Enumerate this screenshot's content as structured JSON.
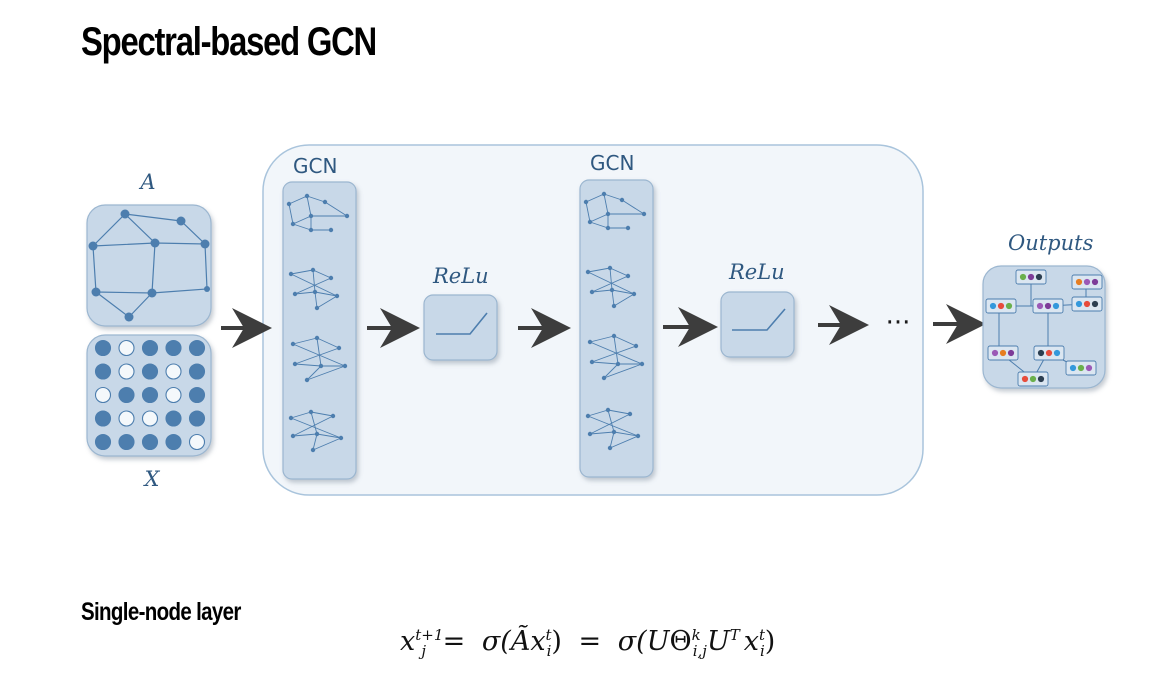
{
  "page": {
    "title": "Spectral-based GCN",
    "subtitle": "Single-node layer"
  },
  "diagram": {
    "input_adjacency_label": "A",
    "input_features_label": "X",
    "layers": [
      {
        "label": "GCN"
      },
      {
        "label": "ReLu"
      },
      {
        "label": "GCN"
      },
      {
        "label": "ReLu"
      }
    ],
    "ellipsis": "···",
    "output_label": "Outputs",
    "feature_matrix": [
      [
        1,
        0,
        1,
        1,
        1
      ],
      [
        1,
        0,
        1,
        0,
        1
      ],
      [
        0,
        1,
        1,
        0,
        1
      ],
      [
        1,
        0,
        0,
        1,
        1
      ],
      [
        1,
        1,
        1,
        1,
        0
      ]
    ],
    "colors": {
      "panel_fill": "#f2f6fa",
      "panel_stroke": "#a9c4dc",
      "box_fill": "#c8d8e8",
      "box_stroke": "#9bb6d0",
      "node": "#4d7eae",
      "edge": "#4d7eae",
      "arrow": "#3d3d3d",
      "output_dots": [
        "#6ab04c",
        "#7d3c98",
        "#e74c3c",
        "#2c3e50",
        "#e67e22",
        "#9b59b6",
        "#3498db"
      ]
    }
  },
  "formula": {
    "lhs_base": "x",
    "lhs_sup": "t+1",
    "lhs_sub": "j",
    "eq1": "=",
    "mid_sigma": "σ(",
    "mid_Atilde": "Ã",
    "mid_x": "x",
    "mid_sup": "t",
    "mid_sub": "i",
    "mid_close": ")",
    "eq2": "=",
    "rhs_sigma": "σ(",
    "rhs_U": "U",
    "rhs_Theta": "Θ",
    "rhs_theta_sup": "k",
    "rhs_theta_sub": "i,j",
    "rhs_U2": "U",
    "rhs_T": "T",
    "rhs_x": "x",
    "rhs_sup": "t",
    "rhs_sub": "i",
    "rhs_close": ")"
  }
}
